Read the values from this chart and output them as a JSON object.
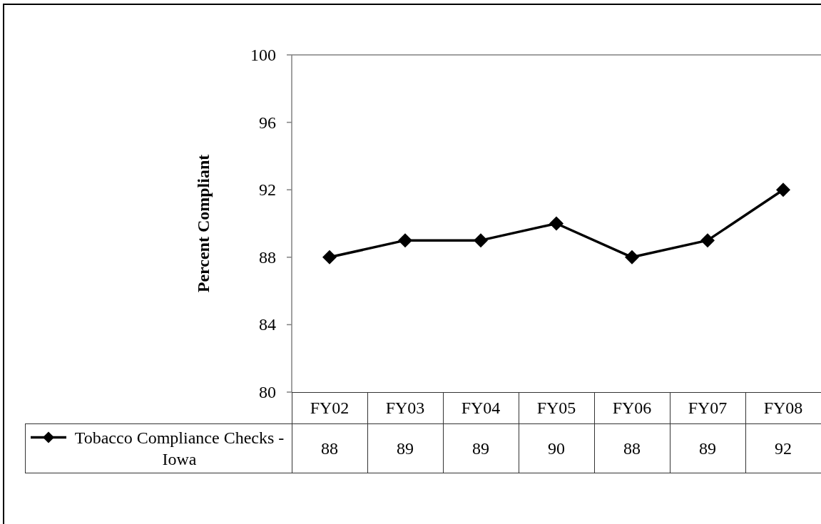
{
  "chart_data": {
    "type": "line",
    "ylabel": "Percent Compliant",
    "categories": [
      "FY02",
      "FY03",
      "FY04",
      "FY05",
      "FY06",
      "FY07",
      "FY08"
    ],
    "series": [
      {
        "name": "Tobacco Compliance Checks - Iowa",
        "color": "#000000",
        "values": [
          88,
          89,
          89,
          90,
          88,
          89,
          92
        ]
      }
    ],
    "ylim": [
      80,
      100
    ],
    "yticks": [
      80,
      84,
      88,
      92,
      96,
      100
    ],
    "marker": "diamond",
    "line_style": "solid",
    "data_labels": true,
    "legend": "bottom left"
  }
}
